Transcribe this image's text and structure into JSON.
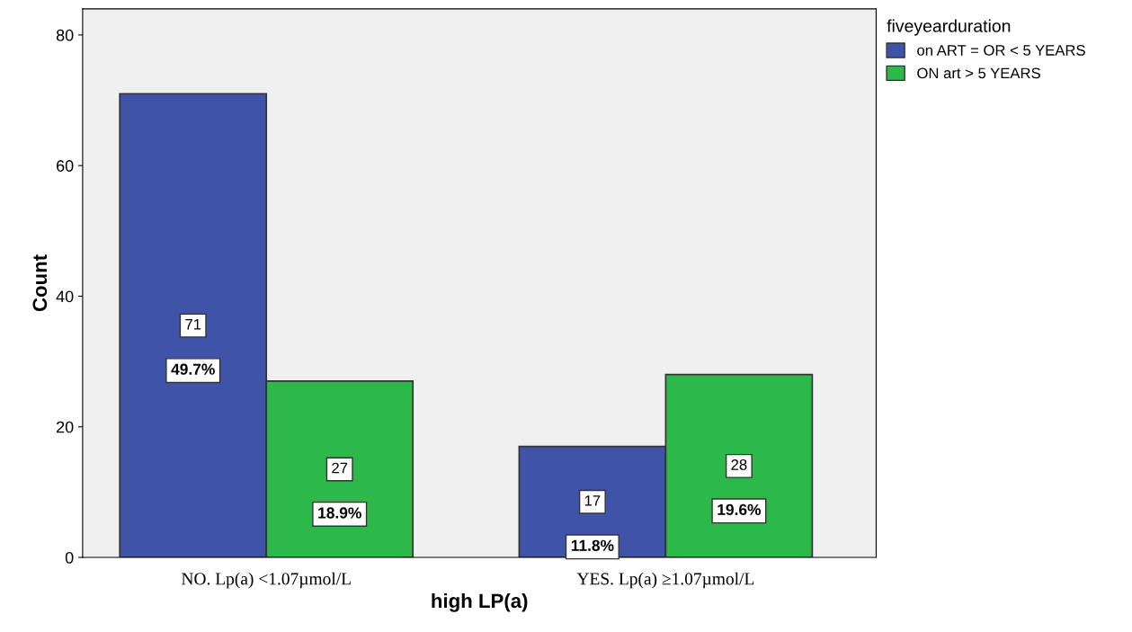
{
  "chart_data": {
    "type": "bar",
    "xlabel": "high LP(a)",
    "ylabel": "Count",
    "legend_title": "fiveyearduration",
    "categories": [
      "NO. Lp(a) <1.07µmol/L",
      "YES. Lp(a) ≥1.07µmol/L"
    ],
    "series": [
      {
        "name": "on ART = OR < 5 YEARS",
        "color": "#3f54a8",
        "values": [
          71,
          17
        ],
        "value_labels": [
          "71\n49.7%",
          "17\n11.8%"
        ]
      },
      {
        "name": "ON art > 5 YEARS",
        "color": "#2db84a",
        "values": [
          27,
          28
        ],
        "value_labels": [
          "27\n18.9%",
          "28\n19.6%"
        ]
      }
    ],
    "ylim": [
      0,
      84
    ],
    "yticks": [
      0,
      20,
      40,
      60,
      80
    ],
    "grid": false,
    "legend": "top right"
  }
}
